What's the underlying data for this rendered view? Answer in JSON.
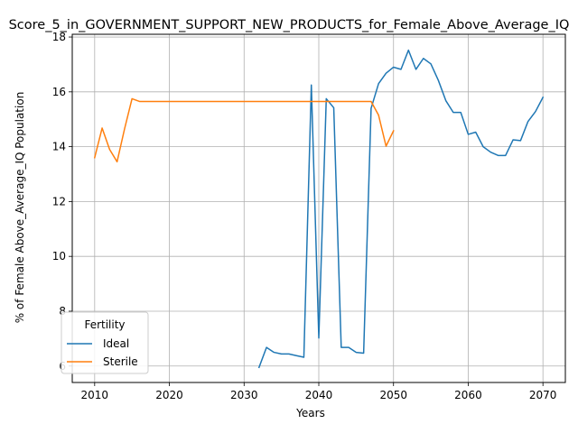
{
  "chart_data": {
    "type": "line",
    "title": "Score_5_in_GOVERNMENT_SUPPORT_NEW_PRODUCTS_for_Female_Above_Average_IQ",
    "xlabel": "Years",
    "ylabel": "% of Female Above_Average_IQ Population",
    "xlim": [
      2007,
      2073
    ],
    "ylim": [
      5.4,
      18.1
    ],
    "xticks": [
      2010,
      2020,
      2030,
      2040,
      2050,
      2060,
      2070
    ],
    "yticks": [
      6,
      8,
      10,
      12,
      14,
      16,
      18
    ],
    "grid": true,
    "legend": {
      "title": "Fertility",
      "placement": "lower-left"
    },
    "series": [
      {
        "name": "Ideal",
        "color": "#1f77b4",
        "x": [
          2032,
          2033,
          2034,
          2035,
          2036,
          2037,
          2038,
          2039,
          2040,
          2041,
          2042,
          2043,
          2044,
          2045,
          2046,
          2047,
          2048,
          2049,
          2050,
          2051,
          2052,
          2053,
          2054,
          2055,
          2056,
          2057,
          2058,
          2059,
          2060,
          2061,
          2062,
          2063,
          2064,
          2065,
          2066,
          2067,
          2068,
          2069,
          2070
        ],
        "y": [
          5.95,
          6.68,
          6.5,
          6.44,
          6.44,
          6.38,
          6.32,
          16.25,
          7.02,
          15.75,
          15.42,
          6.68,
          6.68,
          6.5,
          6.47,
          15.4,
          16.3,
          16.68,
          16.9,
          16.82,
          17.52,
          16.82,
          17.22,
          17.02,
          16.42,
          15.68,
          15.25,
          15.25,
          14.45,
          14.53,
          14.0,
          13.8,
          13.68,
          13.68,
          14.25,
          14.22,
          14.92,
          15.28,
          15.8
        ]
      },
      {
        "name": "Sterile",
        "color": "#ff7f0e",
        "x": [
          2010,
          2011,
          2012,
          2013,
          2014,
          2015,
          2016,
          2017,
          2018,
          2019,
          2020,
          2025,
          2030,
          2035,
          2040,
          2045,
          2046,
          2047,
          2048,
          2049,
          2050
        ],
        "y": [
          13.6,
          14.68,
          13.9,
          13.45,
          14.65,
          15.75,
          15.65,
          15.65,
          15.65,
          15.65,
          15.65,
          15.65,
          15.65,
          15.65,
          15.65,
          15.65,
          15.65,
          15.65,
          15.15,
          14.02,
          14.58
        ]
      }
    ]
  }
}
